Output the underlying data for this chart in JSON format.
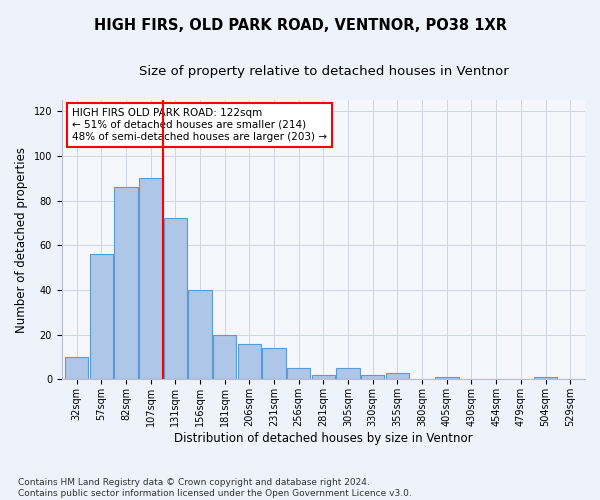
{
  "title1": "HIGH FIRS, OLD PARK ROAD, VENTNOR, PO38 1XR",
  "title2": "Size of property relative to detached houses in Ventnor",
  "xlabel": "Distribution of detached houses by size in Ventnor",
  "ylabel": "Number of detached properties",
  "categories": [
    "32sqm",
    "57sqm",
    "82sqm",
    "107sqm",
    "131sqm",
    "156sqm",
    "181sqm",
    "206sqm",
    "231sqm",
    "256sqm",
    "281sqm",
    "305sqm",
    "330sqm",
    "355sqm",
    "380sqm",
    "405sqm",
    "430sqm",
    "454sqm",
    "479sqm",
    "504sqm",
    "529sqm"
  ],
  "values": [
    10,
    56,
    86,
    90,
    72,
    40,
    20,
    16,
    14,
    5,
    2,
    5,
    2,
    3,
    0,
    1,
    0,
    0,
    0,
    1,
    0
  ],
  "bar_color": "#aec6e8",
  "bar_edge_color": "#5b9bd5",
  "vline_index": 3,
  "vline_color": "red",
  "annotation_text": "HIGH FIRS OLD PARK ROAD: 122sqm\n← 51% of detached houses are smaller (214)\n48% of semi-detached houses are larger (203) →",
  "annotation_box_color": "white",
  "annotation_box_edge": "red",
  "ylim": [
    0,
    125
  ],
  "yticks": [
    0,
    20,
    40,
    60,
    80,
    100,
    120
  ],
  "footnote": "Contains HM Land Registry data © Crown copyright and database right 2024.\nContains public sector information licensed under the Open Government Licence v3.0.",
  "bg_color": "#eef2fa",
  "plot_bg_color": "#f5f7fd",
  "grid_color": "#d0d4e8",
  "title1_fontsize": 10.5,
  "title2_fontsize": 9.5,
  "xlabel_fontsize": 8.5,
  "ylabel_fontsize": 8.5,
  "tick_fontsize": 7,
  "annotation_fontsize": 7.5,
  "footnote_fontsize": 6.5
}
